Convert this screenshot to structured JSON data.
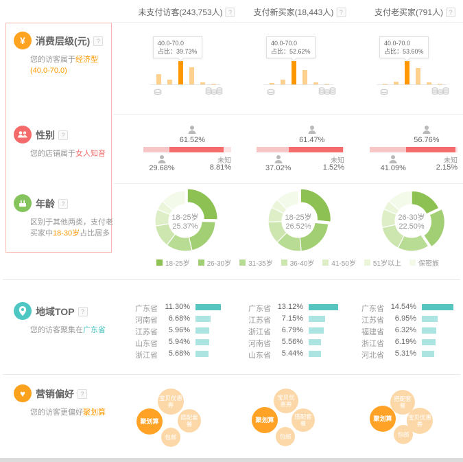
{
  "ui": {
    "help_glyph": "?"
  },
  "header": {
    "columns": [
      {
        "label": "未支付访客(243,753人)"
      },
      {
        "label": "支付新买家(18,443人)"
      },
      {
        "label": "支付老买家(791人)"
      }
    ]
  },
  "sections": {
    "consumption": {
      "title": "消费层级(元)",
      "subtitle_prefix": "您的访客属于",
      "subtitle_highlight": "经济型(40.0-70.0)",
      "subtitle_suffix": ""
    },
    "gender": {
      "title": "性别",
      "subtitle_prefix": "您的店铺属于",
      "subtitle_highlight": "女人知音",
      "subtitle_suffix": ""
    },
    "age": {
      "title": "年龄",
      "subtitle_prefix": "区别于其他两类，支付老买家中",
      "subtitle_highlight": "18-30岁",
      "subtitle_suffix": "占比居多"
    },
    "region": {
      "title": "地域TOP",
      "subtitle_prefix": "您的访客聚集在",
      "subtitle_highlight": "广东省",
      "subtitle_suffix": ""
    },
    "marketing": {
      "title": "营销偏好",
      "subtitle_prefix": "您的访客更偏好",
      "subtitle_highlight": "聚划算",
      "subtitle_suffix": ""
    }
  },
  "chart_data": [
    {
      "id": "consumption",
      "type": "bar",
      "share_prefix": "占比：",
      "colors": {
        "highlight": "#ff9800",
        "normal": "#ffd18f"
      },
      "charts": [
        {
          "tooltip_range": "40.0-70.0",
          "tooltip_share": "39.73%",
          "values": [
            17.0,
            8.5,
            39.73,
            29.0,
            4.0,
            1.5
          ],
          "highlight_index": 2
        },
        {
          "tooltip_range": "40.0-70.0",
          "tooltip_share": "52.62%",
          "values": [
            2.6,
            11.6,
            52.62,
            32.6,
            4.2,
            2.1
          ],
          "highlight_index": 2
        },
        {
          "tooltip_range": "40.0-70.0",
          "tooltip_share": "53.60%",
          "values": [
            2.1,
            6.4,
            53.6,
            37.5,
            5.4,
            2.1
          ],
          "highlight_index": 2
        }
      ]
    },
    {
      "id": "gender",
      "type": "stacked-bar",
      "unknown_label": "未知",
      "colors": {
        "male": "#f7c6c6",
        "female": "#f56c6c",
        "unknown": "#fbe3e3"
      },
      "charts": [
        {
          "female": "61.52%",
          "male": "29.68%",
          "unknown": "8.81%",
          "female_value": 61.52,
          "male_value": 29.68,
          "unknown_value": 8.81
        },
        {
          "female": "61.47%",
          "male": "37.02%",
          "unknown": "1.52%",
          "female_value": 61.47,
          "male_value": 37.02,
          "unknown_value": 1.52
        },
        {
          "female": "56.76%",
          "male": "41.09%",
          "unknown": "2.15%",
          "female_value": 56.76,
          "male_value": 41.09,
          "unknown_value": 2.15
        }
      ]
    },
    {
      "id": "age",
      "type": "donut",
      "legend": [
        "18-25岁",
        "26-30岁",
        "31-35岁",
        "36-40岁",
        "41-50岁",
        "51岁以上",
        "保密族"
      ],
      "colors": [
        "#8dc153",
        "#a3cf74",
        "#b9dc94",
        "#cde6af",
        "#deeec7",
        "#ebf5da",
        "#f4faea"
      ],
      "charts": [
        {
          "center_label": "18-25岁",
          "center_value": "25.37%",
          "values": [
            25.37,
            21.0,
            14.0,
            12.0,
            9.0,
            5.0,
            13.63
          ],
          "highlight_index": 0
        },
        {
          "center_label": "18-25岁",
          "center_value": "26.52%",
          "values": [
            26.52,
            22.0,
            14.0,
            12.0,
            8.0,
            5.0,
            12.48
          ],
          "highlight_index": 0
        },
        {
          "center_label": "26-30岁",
          "center_value": "22.50%",
          "values": [
            18.0,
            22.5,
            17.0,
            14.0,
            10.0,
            5.0,
            13.5
          ],
          "highlight_index": 1
        }
      ]
    },
    {
      "id": "region",
      "type": "hbar-list",
      "colors": {
        "first": "#57c5bf",
        "rest": "#abe4e0"
      },
      "charts": [
        {
          "rows": [
            [
              "广东省",
              "11.30%",
              11.3
            ],
            [
              "河南省",
              "6.68%",
              6.68
            ],
            [
              "江苏省",
              "5.96%",
              5.96
            ],
            [
              "山东省",
              "5.94%",
              5.94
            ],
            [
              "浙江省",
              "5.68%",
              5.68
            ]
          ]
        },
        {
          "rows": [
            [
              "广东省",
              "13.12%",
              13.12
            ],
            [
              "江苏省",
              "7.15%",
              7.15
            ],
            [
              "浙江省",
              "6.79%",
              6.79
            ],
            [
              "河南省",
              "5.56%",
              5.56
            ],
            [
              "山东省",
              "5.44%",
              5.44
            ]
          ]
        },
        {
          "rows": [
            [
              "广东省",
              "14.54%",
              14.54
            ],
            [
              "江苏省",
              "6.95%",
              6.95
            ],
            [
              "福建省",
              "6.32%",
              6.32
            ],
            [
              "浙江省",
              "6.19%",
              6.19
            ],
            [
              "河北省",
              "5.31%",
              5.31
            ]
          ]
        }
      ]
    },
    {
      "id": "marketing",
      "type": "bubble",
      "colors": {
        "dark": "#ffa226",
        "light": "#fcd8a8"
      },
      "charts": [
        {
          "bubbles": [
            {
              "label": "宝贝优惠券",
              "x": 52,
              "y": 27,
              "r": 19,
              "dark": false
            },
            {
              "label": "聚划算",
              "x": 21,
              "y": 56,
              "r": 19,
              "dark": true
            },
            {
              "label": "搭配套餐",
              "x": 79,
              "y": 55,
              "r": 17,
              "dark": false
            },
            {
              "label": "包邮",
              "x": 52,
              "y": 79,
              "r": 14,
              "dark": false
            }
          ]
        },
        {
          "bubbles": [
            {
              "label": "宝贝优惠券",
              "x": 55,
              "y": 26,
              "r": 18,
              "dark": false
            },
            {
              "label": "聚划算",
              "x": 24,
              "y": 54,
              "r": 19,
              "dark": true
            },
            {
              "label": "搭配套餐",
              "x": 80,
              "y": 54,
              "r": 17,
              "dark": false
            },
            {
              "label": "包邮",
              "x": 54,
              "y": 78,
              "r": 14,
              "dark": false
            }
          ]
        },
        {
          "bubbles": [
            {
              "label": "搭配套餐",
              "x": 60,
              "y": 28,
              "r": 18,
              "dark": false
            },
            {
              "label": "聚划算",
              "x": 31,
              "y": 52,
              "r": 19,
              "dark": true
            },
            {
              "label": "宝贝优惠券",
              "x": 85,
              "y": 55,
              "r": 19,
              "dark": false
            },
            {
              "label": "包邮",
              "x": 61,
              "y": 75,
              "r": 14,
              "dark": false
            }
          ]
        }
      ]
    }
  ]
}
